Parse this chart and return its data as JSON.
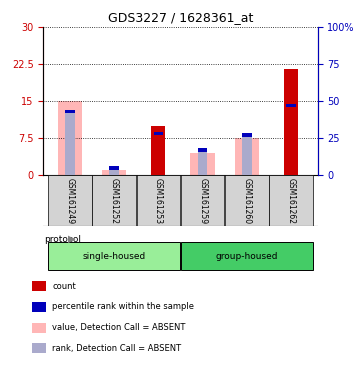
{
  "title": "GDS3227 / 1628361_at",
  "samples": [
    "GSM161249",
    "GSM161252",
    "GSM161253",
    "GSM161259",
    "GSM161260",
    "GSM161262"
  ],
  "red_count": [
    0,
    0,
    10,
    0,
    0,
    21.5
  ],
  "blue_rank_pct": [
    43,
    5,
    28,
    17,
    27,
    47
  ],
  "pink_value_absent": [
    15,
    1.0,
    10,
    4.5,
    7.5,
    0
  ],
  "blue_rank_absent_pct": [
    43,
    5,
    0,
    17,
    27,
    0
  ],
  "absent_mask": [
    true,
    true,
    false,
    true,
    true,
    false
  ],
  "ylim_left": [
    0,
    30
  ],
  "ylim_right": [
    0,
    100
  ],
  "yticks_left": [
    0,
    7.5,
    15,
    22.5,
    30
  ],
  "yticks_right": [
    0,
    25,
    50,
    75,
    100
  ],
  "left_tick_labels": [
    "0",
    "7.5",
    "15",
    "22.5",
    "30"
  ],
  "right_tick_labels": [
    "0",
    "25",
    "50",
    "75",
    "100%"
  ],
  "red_color": "#cc0000",
  "pink_color": "#ffb6b6",
  "blue_dark_color": "#0000bb",
  "blue_light_color": "#aaaacc",
  "bg_xticklabel": "#d3d3d3",
  "left_axis_color": "#cc0000",
  "right_axis_color": "#0000bb",
  "group_info": [
    {
      "label": "single-housed",
      "start": 0,
      "end": 2,
      "color": "#99ee99"
    },
    {
      "label": "group-housed",
      "start": 3,
      "end": 5,
      "color": "#44cc66"
    }
  ],
  "legend_items": [
    {
      "color": "#cc0000",
      "label": "count"
    },
    {
      "color": "#0000bb",
      "label": "percentile rank within the sample"
    },
    {
      "color": "#ffb6b6",
      "label": "value, Detection Call = ABSENT"
    },
    {
      "color": "#aaaacc",
      "label": "rank, Detection Call = ABSENT"
    }
  ]
}
